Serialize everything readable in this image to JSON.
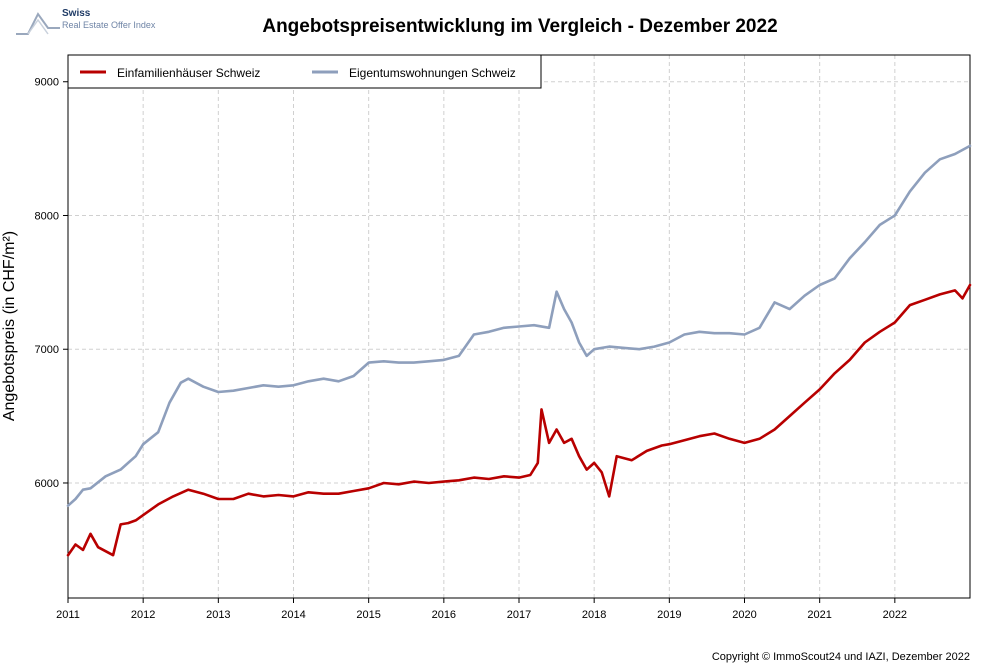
{
  "logo": {
    "name": "Swiss",
    "subtitle": "Real Estate Offer Index"
  },
  "footer": {
    "copyright": "Copyright © ImmoScout24 und IAZI, Dezember 2022"
  },
  "chart_data": {
    "type": "line",
    "title": "Angebotspreisentwicklung im Vergleich - Dezember 2022",
    "xlabel": "",
    "ylabel": "Angebotspreis (in CHF/m²)",
    "xlim": [
      2011.0,
      2023.0
    ],
    "ylim": [
      5140,
      9200
    ],
    "x_ticks": [
      2011,
      2012,
      2013,
      2014,
      2015,
      2016,
      2017,
      2018,
      2019,
      2020,
      2021,
      2022
    ],
    "y_ticks": [
      6000,
      7000,
      8000,
      9000
    ],
    "grid": true,
    "legend_position": "top-left",
    "colors": {
      "efh": "#b80000",
      "etw": "#8e9fbc",
      "grid": "#d0d0d0"
    },
    "series": [
      {
        "name": "Einfamilienhäuser Schweiz",
        "color": "#b80000",
        "x": [
          2011.0,
          2011.1,
          2011.2,
          2011.3,
          2011.4,
          2011.5,
          2011.6,
          2011.7,
          2011.8,
          2011.9,
          2012.0,
          2012.2,
          2012.4,
          2012.6,
          2012.8,
          2013.0,
          2013.2,
          2013.4,
          2013.6,
          2013.8,
          2014.0,
          2014.2,
          2014.4,
          2014.6,
          2014.8,
          2015.0,
          2015.2,
          2015.4,
          2015.6,
          2015.8,
          2016.0,
          2016.2,
          2016.4,
          2016.6,
          2016.8,
          2017.0,
          2017.15,
          2017.25,
          2017.3,
          2017.4,
          2017.5,
          2017.6,
          2017.7,
          2017.8,
          2017.9,
          2018.0,
          2018.1,
          2018.2,
          2018.3,
          2018.5,
          2018.7,
          2018.9,
          2019.0,
          2019.2,
          2019.4,
          2019.6,
          2019.8,
          2020.0,
          2020.2,
          2020.4,
          2020.6,
          2020.8,
          2021.0,
          2021.2,
          2021.4,
          2021.6,
          2021.8,
          2022.0,
          2022.2,
          2022.4,
          2022.6,
          2022.8,
          2022.9,
          2023.0
        ],
        "values": [
          5460,
          5540,
          5500,
          5620,
          5520,
          5490,
          5460,
          5690,
          5700,
          5720,
          5760,
          5840,
          5900,
          5950,
          5920,
          5880,
          5880,
          5920,
          5900,
          5910,
          5900,
          5930,
          5920,
          5920,
          5940,
          5960,
          6000,
          5990,
          6010,
          6000,
          6010,
          6020,
          6040,
          6030,
          6050,
          6040,
          6060,
          6150,
          6550,
          6300,
          6400,
          6300,
          6330,
          6200,
          6100,
          6150,
          6080,
          5900,
          6200,
          6170,
          6240,
          6280,
          6290,
          6320,
          6350,
          6370,
          6330,
          6300,
          6330,
          6400,
          6500,
          6600,
          6700,
          6820,
          6920,
          7050,
          7130,
          7200,
          7330,
          7370,
          7410,
          7440,
          7380,
          7480
        ]
      },
      {
        "name": "Eigentumswohnungen Schweiz",
        "color": "#8e9fbc",
        "x": [
          2011.0,
          2011.1,
          2011.2,
          2011.3,
          2011.5,
          2011.7,
          2011.9,
          2012.0,
          2012.2,
          2012.35,
          2012.5,
          2012.6,
          2012.8,
          2013.0,
          2013.2,
          2013.4,
          2013.6,
          2013.8,
          2014.0,
          2014.2,
          2014.4,
          2014.6,
          2014.8,
          2015.0,
          2015.2,
          2015.4,
          2015.6,
          2015.8,
          2016.0,
          2016.2,
          2016.4,
          2016.6,
          2016.8,
          2017.0,
          2017.2,
          2017.4,
          2017.5,
          2017.6,
          2017.7,
          2017.8,
          2017.9,
          2018.0,
          2018.2,
          2018.4,
          2018.6,
          2018.8,
          2019.0,
          2019.2,
          2019.4,
          2019.6,
          2019.8,
          2020.0,
          2020.2,
          2020.4,
          2020.6,
          2020.8,
          2021.0,
          2021.2,
          2021.4,
          2021.6,
          2021.8,
          2022.0,
          2022.2,
          2022.4,
          2022.6,
          2022.8,
          2023.0
        ],
        "values": [
          5830,
          5880,
          5950,
          5960,
          6050,
          6100,
          6200,
          6290,
          6380,
          6600,
          6750,
          6780,
          6720,
          6680,
          6690,
          6710,
          6730,
          6720,
          6730,
          6760,
          6780,
          6760,
          6800,
          6900,
          6910,
          6900,
          6900,
          6910,
          6920,
          6950,
          7110,
          7130,
          7160,
          7170,
          7180,
          7160,
          7430,
          7300,
          7200,
          7050,
          6950,
          7000,
          7020,
          7010,
          7000,
          7020,
          7050,
          7110,
          7130,
          7120,
          7120,
          7110,
          7160,
          7350,
          7300,
          7400,
          7480,
          7530,
          7680,
          7800,
          7930,
          8000,
          8180,
          8320,
          8420,
          8460,
          8520
        ]
      }
    ]
  }
}
